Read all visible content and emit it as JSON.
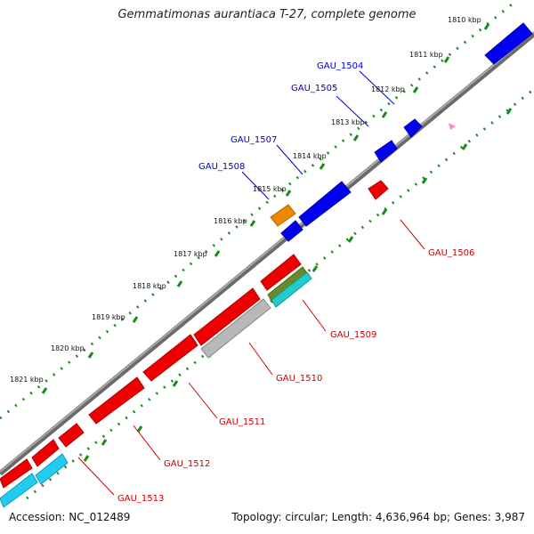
{
  "title": "Gemmatimonas aurantiaca T-27, complete genome",
  "footer": {
    "accession": "Accession: NC_012489",
    "summary": "Topology: circular; Length: 4,636,964 bp; Genes: 3,987"
  },
  "colors": {
    "background": "#ffffff",
    "backbone": "#8a8a8a",
    "tick": "#1a8c1a",
    "forward_label": "#0000cc",
    "reverse_label": "#cc0000"
  },
  "kbp_ticks": [
    "1810 kbp",
    "1811 kbp",
    "1812 kbp",
    "1813 kbp",
    "1814 kbp",
    "1815 kbp",
    "1816 kbp",
    "1817 kbp",
    "1818 kbp",
    "1819 kbp",
    "1820 kbp",
    "1821 kbp"
  ],
  "gene_labels": [
    {
      "text": "GAU_1504",
      "strand": "forward"
    },
    {
      "text": "GAU_1505",
      "strand": "forward"
    },
    {
      "text": "GAU_1507",
      "strand": "forward"
    },
    {
      "text": "GAU_1508",
      "strand": "forward"
    },
    {
      "text": "GAU_1506",
      "strand": "reverse"
    },
    {
      "text": "GAU_1509",
      "strand": "reverse"
    },
    {
      "text": "GAU_1510",
      "strand": "reverse"
    },
    {
      "text": "GAU_1511",
      "strand": "reverse"
    },
    {
      "text": "GAU_1512",
      "strand": "reverse"
    },
    {
      "text": "GAU_1513",
      "strand": "reverse"
    }
  ]
}
